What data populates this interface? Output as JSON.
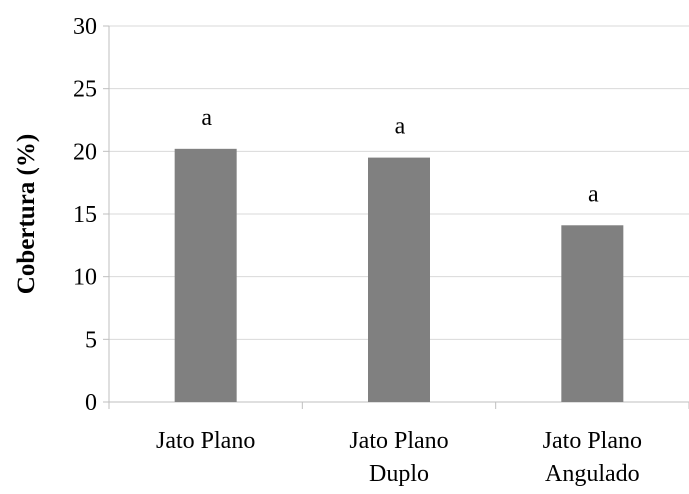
{
  "chart_data": {
    "type": "bar",
    "title": "",
    "xlabel": "",
    "ylabel": "Cobertura (%)",
    "ylim": [
      0,
      30
    ],
    "yticks": [
      0,
      5,
      10,
      15,
      20,
      25,
      30
    ],
    "grid": true,
    "legend": "none",
    "categories": [
      [
        "Jato Plano"
      ],
      [
        "Jato Plano",
        "Duplo"
      ],
      [
        "Jato Plano",
        "Angulado"
      ]
    ],
    "series": [
      {
        "values": [
          20.2,
          19.5,
          14.1
        ]
      }
    ],
    "data_labels": [
      "a",
      "a",
      "a"
    ],
    "colors": {
      "bar": "#808080",
      "grid": "#d9d9d9",
      "axis": "#bfbfbf"
    }
  }
}
